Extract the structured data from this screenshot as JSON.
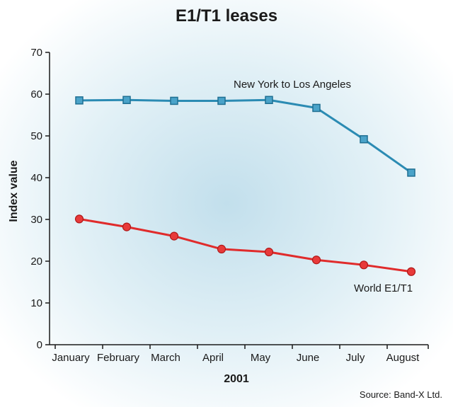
{
  "chart_data": {
    "type": "line",
    "title": "E1/T1 leases",
    "xlabel": "2001",
    "ylabel": "Index value",
    "source": "Source: Band-X Ltd.",
    "categories": [
      "January",
      "February",
      "March",
      "April",
      "May",
      "June",
      "July",
      "August"
    ],
    "ylim": [
      0,
      70
    ],
    "yticks": [
      "0",
      "10",
      "20",
      "30",
      "40",
      "50",
      "60",
      "70"
    ],
    "grid": false,
    "legend": "none",
    "series": [
      {
        "name": "New York to Los Angeles",
        "values": [
          58.5,
          58.6,
          58.4,
          58.4,
          58.6,
          56.7,
          49.2,
          41.2
        ],
        "color": "#2b8bb3",
        "marker": "square"
      },
      {
        "name": "World E1/T1",
        "values": [
          30.1,
          28.2,
          26.0,
          22.9,
          22.2,
          20.3,
          19.1,
          17.5
        ],
        "color": "#e02b2b",
        "marker": "circle"
      }
    ],
    "background_color": "#c9e3ef"
  }
}
